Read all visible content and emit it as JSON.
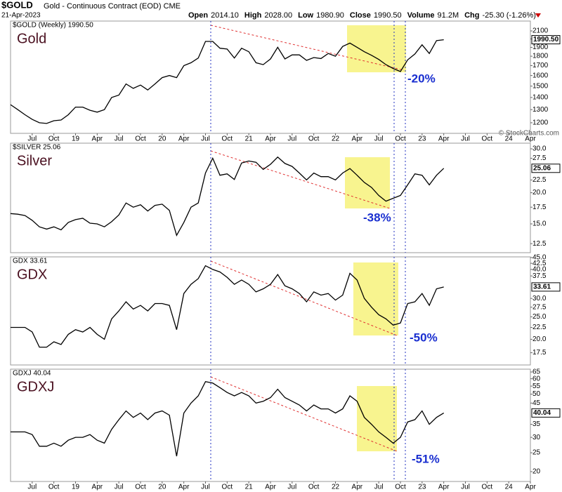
{
  "header": {
    "symbol": "$GOLD",
    "description": "Gold - Continuous Contract (EOD) CME",
    "date": "21-Apr-2023",
    "stats": [
      {
        "label": "Open",
        "value": "2014.10"
      },
      {
        "label": "High",
        "value": "2028.00"
      },
      {
        "label": "Low",
        "value": "1980.90"
      },
      {
        "label": "Close",
        "value": "1990.50"
      },
      {
        "label": "Volume",
        "value": "91.2M"
      },
      {
        "label": "Chg",
        "value": "-25.30 (-1.26%)"
      }
    ],
    "credit": "© StockCharts.com"
  },
  "chart_data": [
    {
      "type": "line",
      "tag": "$GOLD (Weekly) 1990.50",
      "name": "Gold",
      "annotation": "-20%",
      "last_label": "1990.50",
      "color": "#000000",
      "log": true,
      "grid": false,
      "show_xaxis": true,
      "xlim": [
        "2018-04",
        "2024-04"
      ],
      "xticks": [
        {
          "value": "2018-07",
          "label": "Jul"
        },
        {
          "value": "2018-10",
          "label": "Oct"
        },
        {
          "value": "2019-01",
          "label": "19"
        },
        {
          "value": "2019-04",
          "label": "Apr"
        },
        {
          "value": "2019-07",
          "label": "Jul"
        },
        {
          "value": "2019-10",
          "label": "Oct"
        },
        {
          "value": "2020-01",
          "label": "20"
        },
        {
          "value": "2020-04",
          "label": "Apr"
        },
        {
          "value": "2020-07",
          "label": "Jul"
        },
        {
          "value": "2020-10",
          "label": "Oct"
        },
        {
          "value": "2021-01",
          "label": "21"
        },
        {
          "value": "2021-04",
          "label": "Apr"
        },
        {
          "value": "2021-07",
          "label": "Jul"
        },
        {
          "value": "2021-10",
          "label": "Oct"
        },
        {
          "value": "2022-01",
          "label": "22"
        },
        {
          "value": "2022-04",
          "label": "Apr"
        },
        {
          "value": "2022-07",
          "label": "Jul"
        },
        {
          "value": "2022-10",
          "label": "Oct"
        },
        {
          "value": "2023-01",
          "label": "23"
        },
        {
          "value": "2023-04",
          "label": "Apr"
        },
        {
          "value": "2023-07",
          "label": "Jul"
        },
        {
          "value": "2023-10",
          "label": "Oct"
        },
        {
          "value": "2024-01",
          "label": "24"
        },
        {
          "value": "2024-04",
          "label": "Apr"
        }
      ],
      "x": [
        "2018-04",
        "2018-05",
        "2018-06",
        "2018-07",
        "2018-08",
        "2018-09",
        "2018-10",
        "2018-11",
        "2018-12",
        "2019-01",
        "2019-02",
        "2019-03",
        "2019-04",
        "2019-05",
        "2019-06",
        "2019-07",
        "2019-08",
        "2019-09",
        "2019-10",
        "2019-11",
        "2019-12",
        "2020-01",
        "2020-02",
        "2020-03",
        "2020-04",
        "2020-05",
        "2020-06",
        "2020-07",
        "2020-08",
        "2020-09",
        "2020-10",
        "2020-11",
        "2020-12",
        "2021-01",
        "2021-02",
        "2021-03",
        "2021-04",
        "2021-05",
        "2021-06",
        "2021-07",
        "2021-08",
        "2021-09",
        "2021-10",
        "2021-11",
        "2021-12",
        "2022-01",
        "2022-02",
        "2022-03",
        "2022-04",
        "2022-05",
        "2022-06",
        "2022-07",
        "2022-08",
        "2022-09",
        "2022-10",
        "2022-11",
        "2022-12",
        "2023-01",
        "2023-02",
        "2023-03",
        "2023-04"
      ],
      "values": [
        1340,
        1300,
        1260,
        1225,
        1200,
        1195,
        1215,
        1220,
        1260,
        1320,
        1320,
        1295,
        1280,
        1300,
        1400,
        1420,
        1520,
        1480,
        1510,
        1465,
        1520,
        1580,
        1600,
        1580,
        1700,
        1730,
        1780,
        1970,
        1970,
        1890,
        1880,
        1780,
        1890,
        1850,
        1730,
        1710,
        1770,
        1900,
        1770,
        1815,
        1815,
        1755,
        1785,
        1775,
        1830,
        1800,
        1910,
        1950,
        1900,
        1850,
        1810,
        1765,
        1710,
        1670,
        1640,
        1760,
        1825,
        1930,
        1830,
        1980,
        1990.5
      ],
      "ylim": [
        1125,
        2230
      ],
      "yticks": [
        1200,
        1300,
        1400,
        1500,
        1600,
        1700,
        1800,
        1900,
        2000,
        2100
      ]
    },
    {
      "type": "line",
      "tag": "$SILVER 25.06",
      "name": "Silver",
      "annotation": "-38%",
      "last_label": "25.06",
      "color": "#000000",
      "log": true,
      "grid": false,
      "show_xaxis": false,
      "xlim": [
        "2018-04",
        "2024-04"
      ],
      "x": [
        "2018-04",
        "2018-05",
        "2018-06",
        "2018-07",
        "2018-08",
        "2018-09",
        "2018-10",
        "2018-11",
        "2018-12",
        "2019-01",
        "2019-02",
        "2019-03",
        "2019-04",
        "2019-05",
        "2019-06",
        "2019-07",
        "2019-08",
        "2019-09",
        "2019-10",
        "2019-11",
        "2019-12",
        "2020-01",
        "2020-02",
        "2020-03",
        "2020-04",
        "2020-05",
        "2020-06",
        "2020-07",
        "2020-08",
        "2020-09",
        "2020-10",
        "2020-11",
        "2020-12",
        "2021-01",
        "2021-02",
        "2021-03",
        "2021-04",
        "2021-05",
        "2021-06",
        "2021-07",
        "2021-08",
        "2021-09",
        "2021-10",
        "2021-11",
        "2021-12",
        "2022-01",
        "2022-02",
        "2022-03",
        "2022-04",
        "2022-05",
        "2022-06",
        "2022-07",
        "2022-08",
        "2022-09",
        "2022-10",
        "2022-11",
        "2022-12",
        "2023-01",
        "2023-02",
        "2023-03",
        "2023-04"
      ],
      "values": [
        16.5,
        16.4,
        16.2,
        15.5,
        14.6,
        14.3,
        14.6,
        14.2,
        15.2,
        15.6,
        15.8,
        15.1,
        15.0,
        14.6,
        15.3,
        16.3,
        18.2,
        17.5,
        17.9,
        16.9,
        17.8,
        18.0,
        17.0,
        13.5,
        15.2,
        17.5,
        18.2,
        24.0,
        27.5,
        23.5,
        23.8,
        22.6,
        26.3,
        26.8,
        26.5,
        24.8,
        26.0,
        27.8,
        26.2,
        25.5,
        24.0,
        22.5,
        24.0,
        23.2,
        23.2,
        22.5,
        24.0,
        25.0,
        23.5,
        22.0,
        21.0,
        19.5,
        18.5,
        19.0,
        19.5,
        21.5,
        23.8,
        23.5,
        21.5,
        23.5,
        25.06
      ],
      "ylim": [
        11.5,
        31.6
      ],
      "yticks": [
        {
          "value": 12.5,
          "label": "12.5"
        },
        {
          "value": 15,
          "label": "15.0"
        },
        {
          "value": 17.5,
          "label": "17.5"
        },
        {
          "value": 20,
          "label": "20.0"
        },
        {
          "value": 22.5,
          "label": "22.5"
        },
        {
          "value": 27.5,
          "label": "27.5"
        },
        {
          "value": 30,
          "label": "30.0"
        }
      ]
    },
    {
      "type": "line",
      "tag": "GDX 33.61",
      "name": "GDX",
      "annotation": "-50%",
      "last_label": "33.61",
      "color": "#000000",
      "log": true,
      "grid": false,
      "show_xaxis": false,
      "xlim": [
        "2018-04",
        "2024-04"
      ],
      "x": [
        "2018-04",
        "2018-05",
        "2018-06",
        "2018-07",
        "2018-08",
        "2018-09",
        "2018-10",
        "2018-11",
        "2018-12",
        "2019-01",
        "2019-02",
        "2019-03",
        "2019-04",
        "2019-05",
        "2019-06",
        "2019-07",
        "2019-08",
        "2019-09",
        "2019-10",
        "2019-11",
        "2019-12",
        "2020-01",
        "2020-02",
        "2020-03",
        "2020-04",
        "2020-05",
        "2020-06",
        "2020-07",
        "2020-08",
        "2020-09",
        "2020-10",
        "2020-11",
        "2020-12",
        "2021-01",
        "2021-02",
        "2021-03",
        "2021-04",
        "2021-05",
        "2021-06",
        "2021-07",
        "2021-08",
        "2021-09",
        "2021-10",
        "2021-11",
        "2021-12",
        "2022-01",
        "2022-02",
        "2022-03",
        "2022-04",
        "2022-05",
        "2022-06",
        "2022-07",
        "2022-08",
        "2022-09",
        "2022-10",
        "2022-11",
        "2022-12",
        "2023-01",
        "2023-02",
        "2023-03",
        "2023-04"
      ],
      "values": [
        22.5,
        22.5,
        22.5,
        21.5,
        18.5,
        18.5,
        19.5,
        19.0,
        21.0,
        22.0,
        21.5,
        22.5,
        21.0,
        20.0,
        24.5,
        26.5,
        29.0,
        27.0,
        28.0,
        26.5,
        28.5,
        28.5,
        28.0,
        22.0,
        31.5,
        34.5,
        36.5,
        41.5,
        40.0,
        39.0,
        37.0,
        34.5,
        36.0,
        34.5,
        32.0,
        33.0,
        34.5,
        38.0,
        34.0,
        33.0,
        31.5,
        29.0,
        32.0,
        31.0,
        31.5,
        29.5,
        31.0,
        38.5,
        36.0,
        30.0,
        27.5,
        25.5,
        24.5,
        23.0,
        23.5,
        28.5,
        29.0,
        31.5,
        28.0,
        33.0,
        33.61
      ],
      "ylim": [
        15.5,
        45.3
      ],
      "yticks": [
        {
          "value": 17.5,
          "label": "17.5"
        },
        {
          "value": 20,
          "label": "20.0"
        },
        {
          "value": 22.5,
          "label": "22.5"
        },
        {
          "value": 25,
          "label": "25.0"
        },
        {
          "value": 27.5,
          "label": "27.5"
        },
        {
          "value": 30,
          "label": "30.0"
        },
        {
          "value": 37.5,
          "label": "37.5"
        },
        {
          "value": 40,
          "label": "40.0"
        },
        {
          "value": 42.5,
          "label": "42.5"
        },
        {
          "value": 45,
          "label": "45.0"
        }
      ]
    },
    {
      "type": "line",
      "tag": "GDXJ 40.04",
      "name": "GDXJ",
      "annotation": "-51%",
      "last_label": "40.04",
      "color": "#000000",
      "log": true,
      "grid": false,
      "show_xaxis": true,
      "xlim": [
        "2018-04",
        "2024-04"
      ],
      "xticks": [
        {
          "value": "2018-07",
          "label": "Jul"
        },
        {
          "value": "2018-10",
          "label": "Oct"
        },
        {
          "value": "2019-01",
          "label": "19"
        },
        {
          "value": "2019-04",
          "label": "Apr"
        },
        {
          "value": "2019-07",
          "label": "Jul"
        },
        {
          "value": "2019-10",
          "label": "Oct"
        },
        {
          "value": "2020-01",
          "label": "20"
        },
        {
          "value": "2020-04",
          "label": "Apr"
        },
        {
          "value": "2020-07",
          "label": "Jul"
        },
        {
          "value": "2020-10",
          "label": "Oct"
        },
        {
          "value": "2021-01",
          "label": "21"
        },
        {
          "value": "2021-04",
          "label": "Apr"
        },
        {
          "value": "2021-07",
          "label": "Jul"
        },
        {
          "value": "2021-10",
          "label": "Oct"
        },
        {
          "value": "2022-01",
          "label": "22"
        },
        {
          "value": "2022-04",
          "label": "Apr"
        },
        {
          "value": "2022-07",
          "label": "Jul"
        },
        {
          "value": "2022-10",
          "label": "Oct"
        },
        {
          "value": "2023-01",
          "label": "23"
        },
        {
          "value": "2023-04",
          "label": "Apr"
        },
        {
          "value": "2023-07",
          "label": "Jul"
        },
        {
          "value": "2023-10",
          "label": "Oct"
        },
        {
          "value": "2024-01",
          "label": "24"
        },
        {
          "value": "2024-04",
          "label": "Apr"
        }
      ],
      "x": [
        "2018-04",
        "2018-05",
        "2018-06",
        "2018-07",
        "2018-08",
        "2018-09",
        "2018-10",
        "2018-11",
        "2018-12",
        "2019-01",
        "2019-02",
        "2019-03",
        "2019-04",
        "2019-05",
        "2019-06",
        "2019-07",
        "2019-08",
        "2019-09",
        "2019-10",
        "2019-11",
        "2019-12",
        "2020-01",
        "2020-02",
        "2020-03",
        "2020-04",
        "2020-05",
        "2020-06",
        "2020-07",
        "2020-08",
        "2020-09",
        "2020-10",
        "2020-11",
        "2020-12",
        "2021-01",
        "2021-02",
        "2021-03",
        "2021-04",
        "2021-05",
        "2021-06",
        "2021-07",
        "2021-08",
        "2021-09",
        "2021-10",
        "2021-11",
        "2021-12",
        "2022-01",
        "2022-02",
        "2022-03",
        "2022-04",
        "2022-05",
        "2022-06",
        "2022-07",
        "2022-08",
        "2022-09",
        "2022-10",
        "2022-11",
        "2022-12",
        "2023-01",
        "2023-02",
        "2023-03",
        "2023-04"
      ],
      "values": [
        32,
        32,
        32,
        31,
        27,
        27,
        28,
        27,
        29,
        30,
        30,
        31,
        29,
        28,
        33,
        37,
        41,
        38,
        40,
        37,
        40,
        41,
        39,
        24,
        40,
        45,
        49,
        58,
        57,
        54,
        51,
        49,
        51,
        49,
        45,
        46,
        48,
        53,
        48,
        46,
        44,
        41,
        44,
        42,
        42,
        40,
        42,
        49,
        46,
        38,
        35,
        32,
        30,
        28,
        30,
        36,
        37,
        41,
        35,
        38,
        40.04
      ],
      "ylim": [
        17.8,
        67.2
      ],
      "yticks": [
        20,
        25,
        30,
        35,
        45,
        50,
        55,
        60,
        65
      ]
    }
  ]
}
